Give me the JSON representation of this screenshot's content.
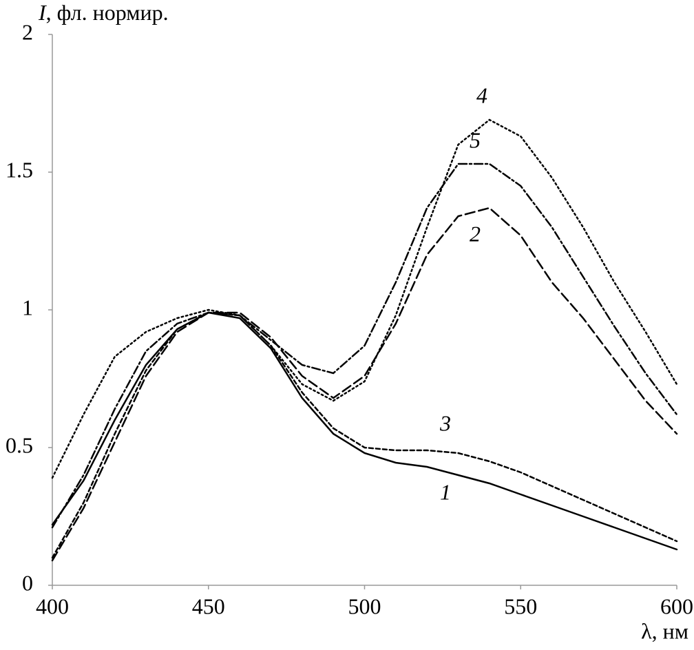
{
  "chart_data": {
    "type": "line",
    "y_label": "I, фл. нормир.",
    "x_label": "λ, нм",
    "x": [
      400,
      410,
      420,
      430,
      440,
      450,
      460,
      470,
      480,
      490,
      500,
      510,
      520,
      530,
      540,
      550,
      560,
      570,
      580,
      590,
      600
    ],
    "series": [
      {
        "name": "1",
        "color": "#000000",
        "dash": "solid",
        "values": [
          0.22,
          0.38,
          0.6,
          0.8,
          0.93,
          0.99,
          0.97,
          0.86,
          0.68,
          0.55,
          0.48,
          0.445,
          0.43,
          0.4,
          0.37,
          0.33,
          0.29,
          0.25,
          0.21,
          0.17,
          0.13
        ]
      },
      {
        "name": "2",
        "color": "#000000",
        "dash": "long-dash",
        "values": [
          0.09,
          0.28,
          0.52,
          0.76,
          0.92,
          0.99,
          0.99,
          0.9,
          0.76,
          0.68,
          0.76,
          0.95,
          1.2,
          1.34,
          1.37,
          1.27,
          1.1,
          0.97,
          0.82,
          0.67,
          0.55
        ]
      },
      {
        "name": "3",
        "color": "#000000",
        "dash": "short-dash",
        "values": [
          0.1,
          0.3,
          0.55,
          0.78,
          0.93,
          0.99,
          0.98,
          0.87,
          0.7,
          0.57,
          0.5,
          0.49,
          0.49,
          0.48,
          0.45,
          0.41,
          0.36,
          0.31,
          0.26,
          0.21,
          0.16
        ]
      },
      {
        "name": "4",
        "color": "#000000",
        "dash": "dotted",
        "values": [
          0.39,
          0.62,
          0.83,
          0.92,
          0.97,
          1.0,
          0.98,
          0.87,
          0.73,
          0.67,
          0.74,
          0.98,
          1.3,
          1.6,
          1.69,
          1.63,
          1.48,
          1.3,
          1.1,
          0.92,
          0.73
        ]
      },
      {
        "name": "5",
        "color": "#000000",
        "dash": "dash-dot",
        "values": [
          0.21,
          0.4,
          0.64,
          0.85,
          0.95,
          0.99,
          0.98,
          0.89,
          0.8,
          0.77,
          0.87,
          1.1,
          1.37,
          1.53,
          1.53,
          1.45,
          1.3,
          1.12,
          0.94,
          0.77,
          0.62
        ]
      }
    ],
    "xlim": [
      400,
      600
    ],
    "xticks": [
      400,
      450,
      500,
      550,
      600
    ],
    "ylim": [
      0,
      2
    ],
    "yticks": [
      0,
      0.5,
      1,
      1.5,
      2
    ],
    "grid": false
  }
}
